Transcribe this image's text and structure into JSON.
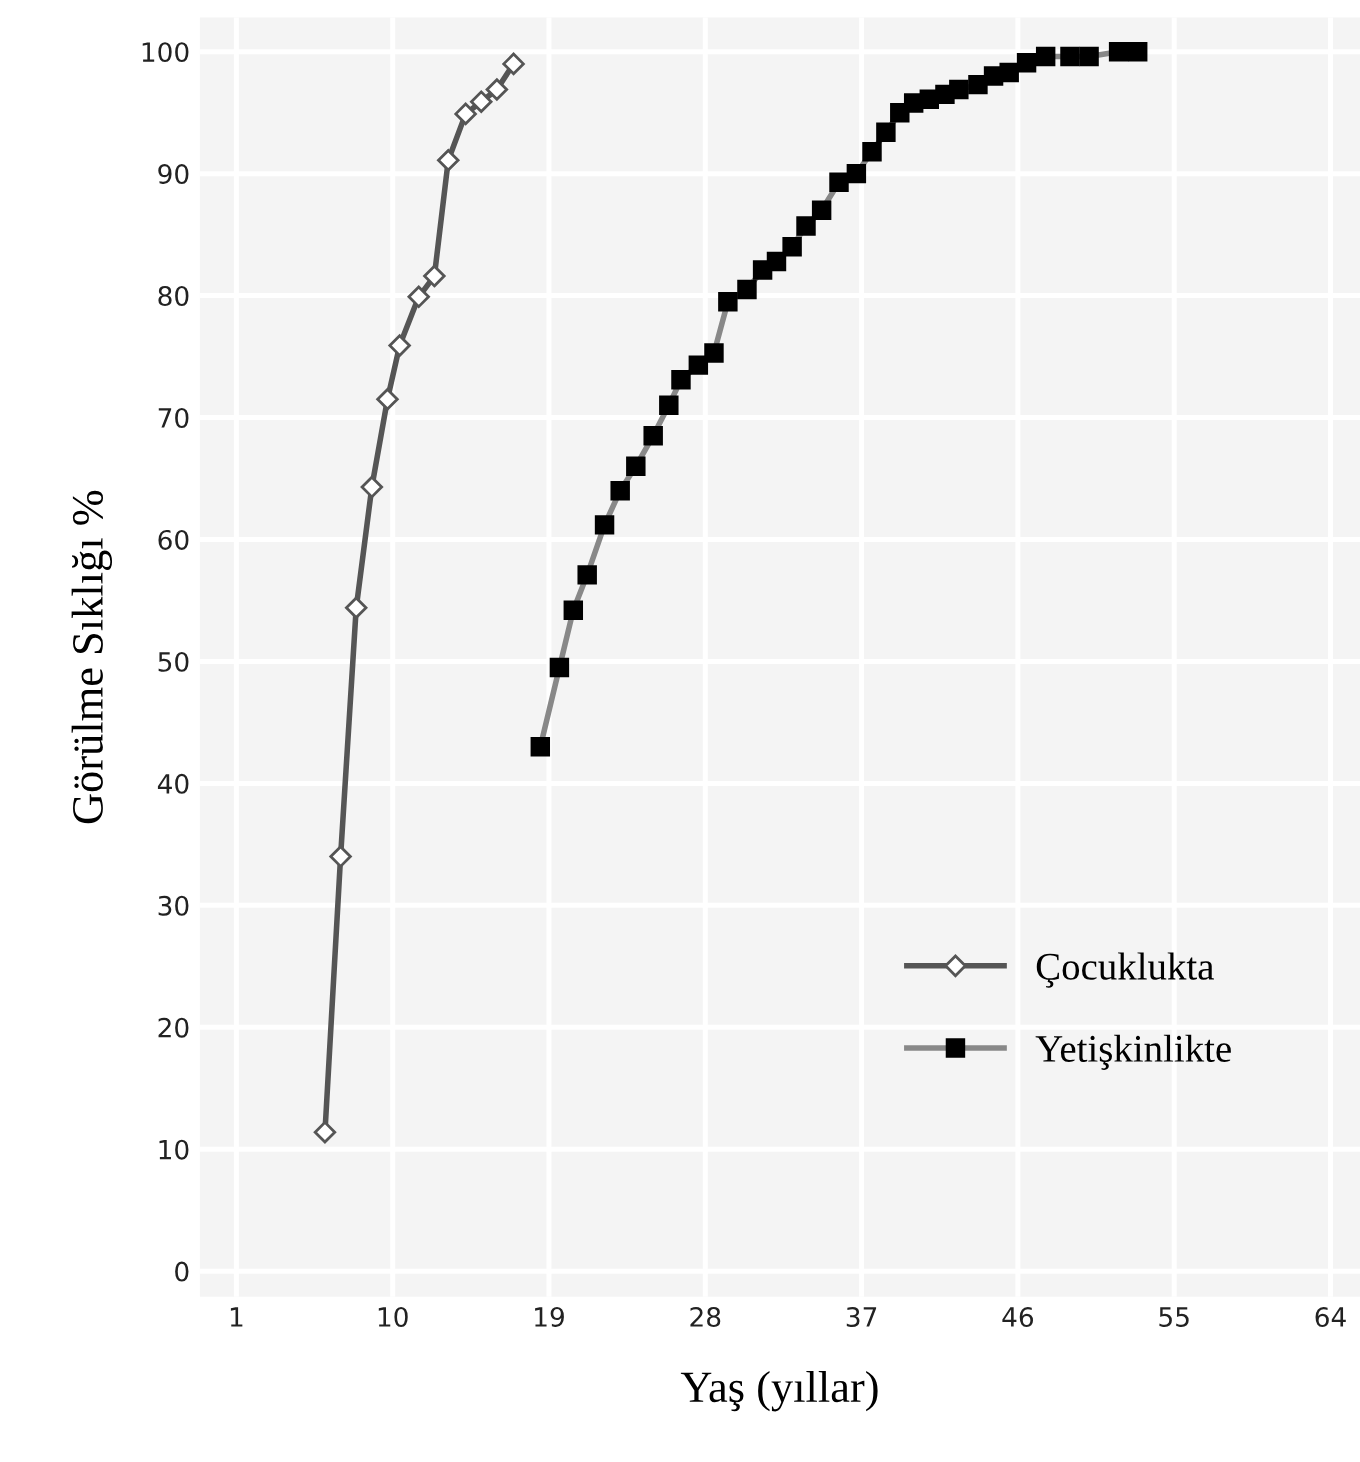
{
  "chart_data": {
    "type": "line",
    "xlabel": "Yaş (yıllar)",
    "ylabel": "Görülme Sıklığı %",
    "xlim": [
      -1.1,
      65.7
    ],
    "xticks": [
      1,
      10,
      19,
      28,
      37,
      46,
      55,
      64
    ],
    "ylim": [
      -2.1,
      102.8
    ],
    "yticks": [
      0,
      10,
      20,
      30,
      40,
      50,
      60,
      70,
      80,
      90,
      100
    ],
    "grid": true,
    "legend": "bottom right",
    "line_style": "solid",
    "series": [
      {
        "name": "Çocuklukta",
        "color": "#555555",
        "marker": "diamond",
        "x": [
          6.1,
          7.0,
          7.9,
          8.8,
          9.7,
          10.4,
          11.5,
          12.4,
          13.2,
          14.2,
          15.1,
          16.0,
          16.96
        ],
        "values": [
          11.4,
          34.0,
          54.4,
          64.3,
          71.5,
          75.9,
          79.9,
          81.6,
          91.1,
          94.9,
          95.9,
          96.9,
          99.0
        ]
      },
      {
        "name": "Yetişkinlikte",
        "color": "#000000",
        "marker": "square",
        "x": [
          18.5,
          19.6,
          20.4,
          21.2,
          22.2,
          23.1,
          24.0,
          25.0,
          25.9,
          26.6,
          27.6,
          28.5,
          29.3,
          30.4,
          31.3,
          32.1,
          33.0,
          33.8,
          34.7,
          35.7,
          36.7,
          37.6,
          38.4,
          39.2,
          40.0,
          40.9,
          41.8,
          42.6,
          43.7,
          44.6,
          45.5,
          46.5,
          47.6,
          49.0,
          50.1,
          51.8,
          52.9
        ],
        "values": [
          43.0,
          49.5,
          54.2,
          57.1,
          61.2,
          64.0,
          66.0,
          68.5,
          71.0,
          73.1,
          74.3,
          75.3,
          79.5,
          80.5,
          82.1,
          82.8,
          84.0,
          85.7,
          87.0,
          89.3,
          90.0,
          91.8,
          93.4,
          95.0,
          95.8,
          96.1,
          96.5,
          96.9,
          97.3,
          98.0,
          98.3,
          99.1,
          99.6,
          99.6,
          99.6,
          100.0,
          100.0
        ]
      }
    ]
  }
}
